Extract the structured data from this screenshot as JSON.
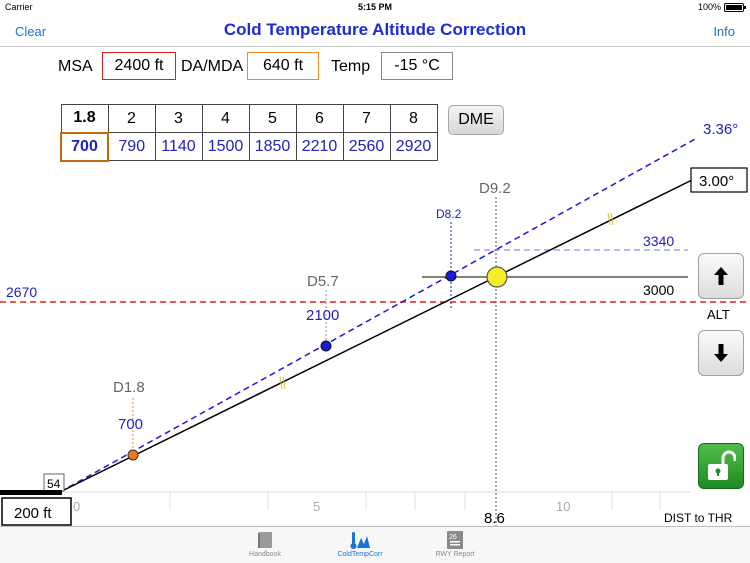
{
  "status_bar": {
    "carrier": "Carrier",
    "time": "5:15 PM",
    "battery": "100%"
  },
  "nav": {
    "title": "Cold Temperature Altitude Correction",
    "left_button": "Clear",
    "right_button": "Info"
  },
  "inputs": {
    "msa_label": "MSA",
    "msa_value": "2400 ft",
    "da_label": "DA/MDA",
    "da_value": "640 ft",
    "temp_label": "Temp",
    "temp_value": "-15 °C"
  },
  "dme_table": {
    "distances": [
      "1.8",
      "2",
      "3",
      "4",
      "5",
      "6",
      "7",
      "8"
    ],
    "altitudes": [
      "700",
      "790",
      "1140",
      "1500",
      "1850",
      "2210",
      "2560",
      "2920"
    ],
    "selected_index": 0,
    "button_label": "DME"
  },
  "controls": {
    "alt_label": "ALT"
  },
  "chart_data": {
    "type": "line",
    "xlabel": "DIST to THR",
    "ylabel": "",
    "x_ticks": [
      "0",
      "5",
      "10"
    ],
    "xlim": [
      0,
      12.5
    ],
    "ylim": [
      0,
      3800
    ],
    "series": [
      {
        "name": "3.36°",
        "color": "#2222bb",
        "style": "dashed",
        "x": [
          0,
          12.5
        ],
        "y": [
          0,
          4460
        ]
      },
      {
        "name": "3.00°",
        "color": "#000000",
        "style": "solid",
        "x": [
          0,
          12.5
        ],
        "y": [
          0,
          4000
        ]
      }
    ],
    "points": [
      {
        "label": "D1.8",
        "x": 1.8,
        "y": 700,
        "value_label": "700",
        "color": "#ee7722"
      },
      {
        "label": "D5.7",
        "x": 5.7,
        "y": 2100,
        "value_label": "2100",
        "color": "#1a1ad9"
      },
      {
        "label": "D8.2",
        "x": 8.2,
        "y": 3000,
        "value_label": "",
        "color": "#1a1ad9"
      },
      {
        "label": "D9.2",
        "x": 9.2,
        "y": 3000,
        "value_label": "",
        "color": "#f4ee2a"
      }
    ],
    "reference_lines": [
      {
        "label": "2670",
        "y": 2670,
        "color": "#e02020",
        "style": "dashed"
      },
      {
        "label": "3000",
        "y": 3000,
        "color": "#000000",
        "style": "solid"
      },
      {
        "label": "3340",
        "y": 3340,
        "color": "#8888ee",
        "style": "dashed"
      }
    ],
    "angle_labels": {
      "corrected": "3.36°",
      "nominal": "3.00°"
    },
    "cursor_distance": "8.6",
    "threshold_elevation": "54",
    "threshold_altitude": "200 ft"
  },
  "tabs": [
    {
      "label": "Handbook",
      "active": false
    },
    {
      "label": "ColdTempCorr",
      "active": true
    },
    {
      "label": "RWY Report",
      "active": false
    }
  ],
  "colors": {
    "accent": "#1a73d9",
    "title": "#1f2bd6",
    "corrected": "#2222bb",
    "warning": "#e02020"
  }
}
